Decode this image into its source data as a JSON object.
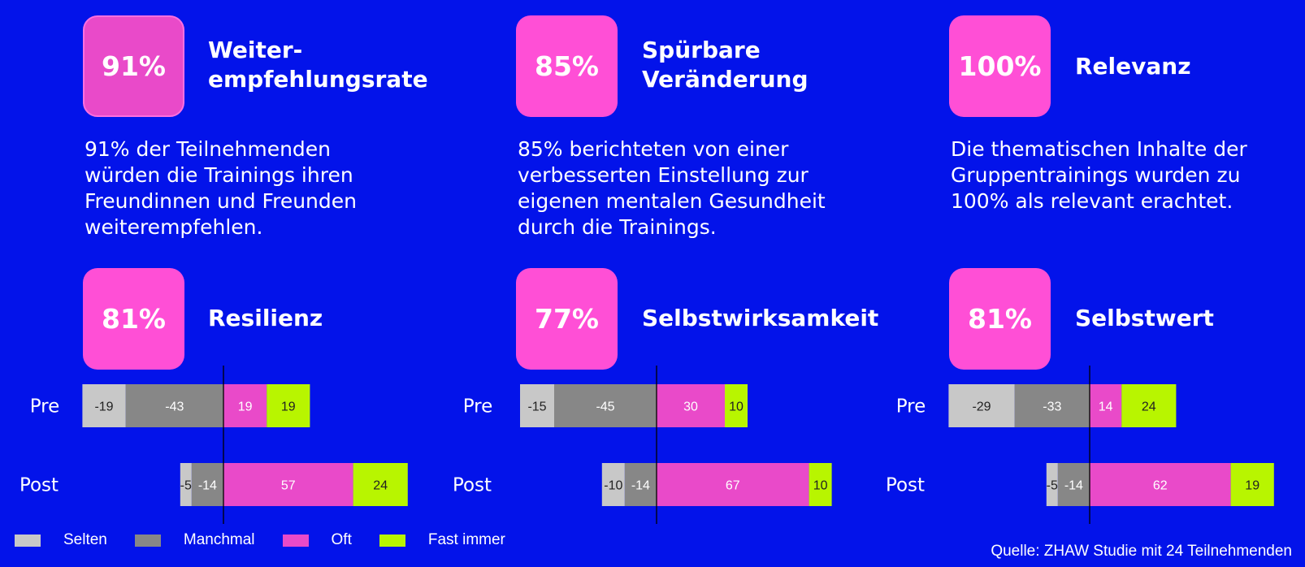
{
  "stats": [
    {
      "value": "91%",
      "title": "Weiter-\nempfehlungsrate",
      "desc": [
        "91% der Teilnehmenden",
        "würden die Trainings ihren",
        "Freundinnen und Freunden",
        "weiterempfehlen."
      ]
    },
    {
      "value": "85%",
      "title": "Spürbare\nVeränderung",
      "desc": [
        "85% berichteten von einer",
        "verbesserten Einstellung zur",
        "eigenen mentalen Gesundheit",
        "durch die Trainings."
      ]
    },
    {
      "value": "100%",
      "title": "Relevanz",
      "desc": [
        "Die thematischen Inhalte der",
        "Gruppentrainings wurden zu",
        "100% als relevant erachtet."
      ]
    },
    {
      "value": "81%",
      "title": "Resilienz"
    },
    {
      "value": "77%",
      "title": "Selbstwirksamkeit"
    },
    {
      "value": "81%",
      "title": "Selbstwert"
    }
  ],
  "legend": [
    {
      "label": "Selten",
      "color": "#c8c8c8"
    },
    {
      "label": "Manchmal",
      "color": "#878787"
    },
    {
      "label": "Oft",
      "color": "#e94ac9"
    },
    {
      "label": "Fast immer",
      "color": "#b8f500"
    }
  ],
  "source": "Quelle: ZHAW Studie mit 24 Teilnehmenden",
  "chart_data": [
    {
      "type": "bar",
      "orientation": "horizontal-diverging",
      "categories": [
        "Pre",
        "Post"
      ],
      "series": [
        {
          "name": "Selten",
          "values": [
            -19,
            -5
          ]
        },
        {
          "name": "Manchmal",
          "values": [
            -43,
            -14
          ]
        },
        {
          "name": "Oft",
          "values": [
            19,
            57
          ]
        },
        {
          "name": "Fast immer",
          "values": [
            19,
            24
          ]
        }
      ]
    },
    {
      "type": "bar",
      "orientation": "horizontal-diverging",
      "categories": [
        "Pre",
        "Post"
      ],
      "series": [
        {
          "name": "Selten",
          "values": [
            -15,
            -10
          ]
        },
        {
          "name": "Manchmal",
          "values": [
            -45,
            -14
          ]
        },
        {
          "name": "Oft",
          "values": [
            30,
            67
          ]
        },
        {
          "name": "Fast immer",
          "values": [
            10,
            10
          ]
        }
      ]
    },
    {
      "type": "bar",
      "orientation": "horizontal-diverging",
      "categories": [
        "Pre",
        "Post"
      ],
      "series": [
        {
          "name": "Selten",
          "values": [
            -29,
            -5
          ]
        },
        {
          "name": "Manchmal",
          "values": [
            -33,
            -14
          ]
        },
        {
          "name": "Oft",
          "values": [
            14,
            62
          ]
        },
        {
          "name": "Fast immer",
          "values": [
            24,
            19
          ]
        }
      ]
    }
  ]
}
